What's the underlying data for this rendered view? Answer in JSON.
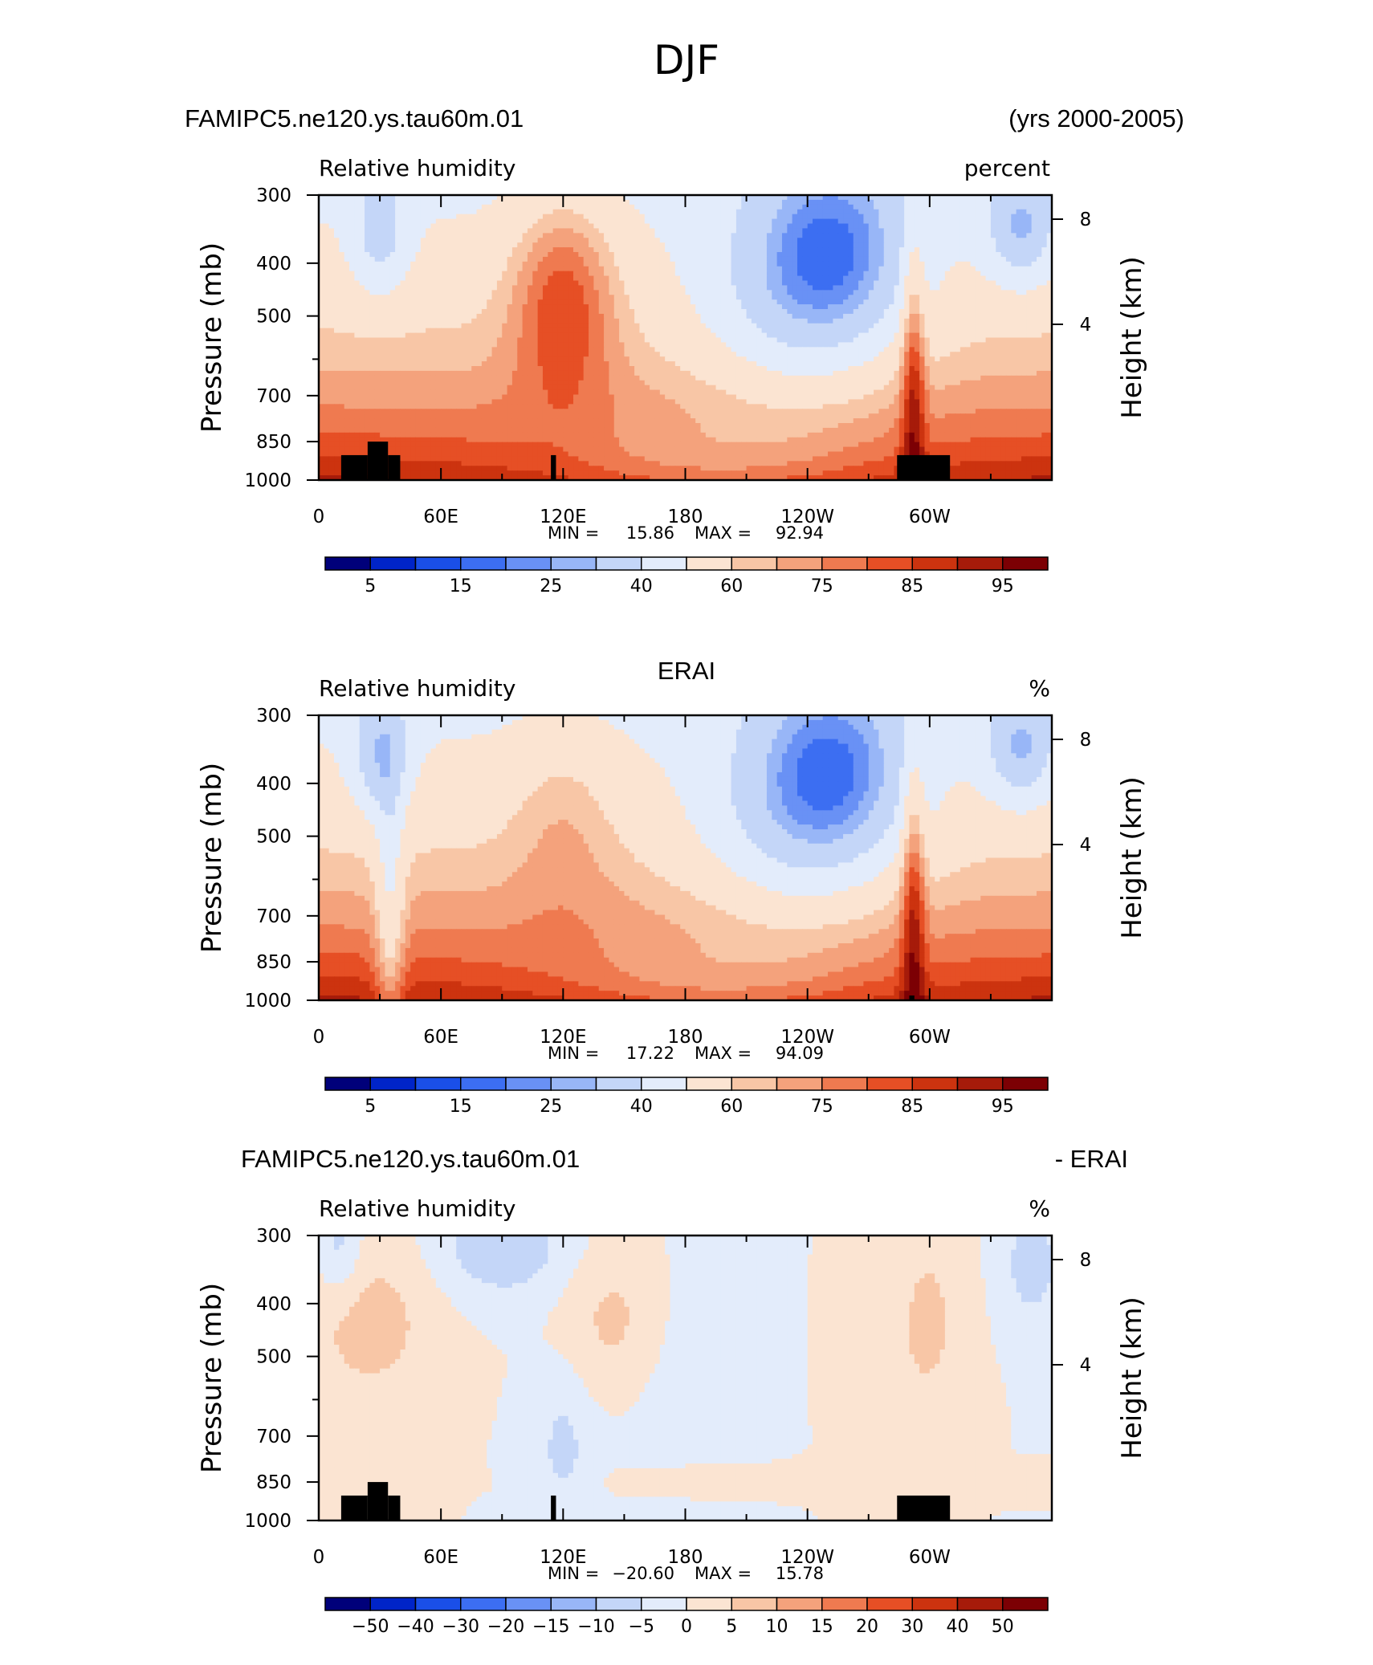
{
  "page_title": "DJF",
  "chart_data": [
    {
      "type": "contour",
      "title_left": "FAMIPC5.ne120.ys.tau60m.01",
      "title_right": "(yrs 2000-2005)",
      "subtitle_left": "Relative humidity",
      "subtitle_right": "percent",
      "ylabel": "Pressure (mb)",
      "y2label": "Height (km)",
      "x_ticks": [
        "0",
        "60E",
        "120E",
        "180",
        "120W",
        "60W"
      ],
      "y_ticks": [
        "300",
        "400",
        "500",
        "700",
        "850",
        "1000"
      ],
      "y_tick_values": [
        300,
        400,
        500,
        600,
        700,
        850,
        1000
      ],
      "y2_ticks": [
        "8",
        "4"
      ],
      "stats": {
        "min_label": "MIN =",
        "min": "15.86",
        "max_label": "MAX =",
        "max": "92.94"
      },
      "colorbar_labels": [
        "5",
        "15",
        "25",
        "40",
        "60",
        "75",
        "85",
        "95"
      ],
      "terrain_mask": true
    },
    {
      "type": "contour",
      "title_center": "ERAI",
      "subtitle_left": "Relative humidity",
      "subtitle_right": "%",
      "ylabel": "Pressure (mb)",
      "y2label": "Height (km)",
      "x_ticks": [
        "0",
        "60E",
        "120E",
        "180",
        "120W",
        "60W"
      ],
      "y_ticks": [
        "300",
        "400",
        "500",
        "700",
        "850",
        "1000"
      ],
      "y_tick_values": [
        300,
        400,
        500,
        600,
        700,
        850,
        1000
      ],
      "y2_ticks": [
        "8",
        "4"
      ],
      "stats": {
        "min_label": "MIN =",
        "min": "17.22",
        "max_label": "MAX =",
        "max": "94.09"
      },
      "colorbar_labels": [
        "5",
        "15",
        "25",
        "40",
        "60",
        "75",
        "85",
        "95"
      ],
      "terrain_mask": false
    },
    {
      "type": "contour",
      "title_left": "FAMIPC5.ne120.ys.tau60m.01",
      "title_right": "- ERAI",
      "subtitle_left": "Relative humidity",
      "subtitle_right": "%",
      "ylabel": "Pressure (mb)",
      "y2label": "Height (km)",
      "x_ticks": [
        "0",
        "60E",
        "120E",
        "180",
        "120W",
        "60W"
      ],
      "y_ticks": [
        "300",
        "400",
        "500",
        "700",
        "850",
        "1000"
      ],
      "y_tick_values": [
        300,
        400,
        500,
        600,
        700,
        850,
        1000
      ],
      "y2_ticks": [
        "8",
        "4"
      ],
      "stats": {
        "min_label": "MIN =",
        "min": "−20.60",
        "max_label": "MAX =",
        "max": "15.78"
      },
      "colorbar_labels": [
        "−50",
        "−40",
        "−30",
        "−20",
        "−15",
        "−10",
        "−5",
        "0",
        "5",
        "10",
        "15",
        "20",
        "30",
        "40",
        "50"
      ],
      "terrain_mask": true
    }
  ],
  "colors": {
    "rh_levels": [
      "#00007a",
      "#0024c8",
      "#1a4fe8",
      "#3c6ef2",
      "#6991f5",
      "#98b6f7",
      "#c4d6f8",
      "#e3ecfb",
      "#fbe4d2",
      "#f8c6a6",
      "#f4a27c",
      "#ef7a50",
      "#e64f25",
      "#cc330f",
      "#a61b0a",
      "#7c0004"
    ],
    "diff_levels": [
      "#00007a",
      "#0024c8",
      "#1a4fe8",
      "#3c6ef2",
      "#6991f5",
      "#98b6f7",
      "#c4d6f8",
      "#e3ecfb",
      "#fbe4d2",
      "#f8c6a6",
      "#f4a27c",
      "#ef7a50",
      "#e64f25",
      "#cc330f",
      "#a61b0a",
      "#7c0004"
    ],
    "terrain": "#000000"
  }
}
